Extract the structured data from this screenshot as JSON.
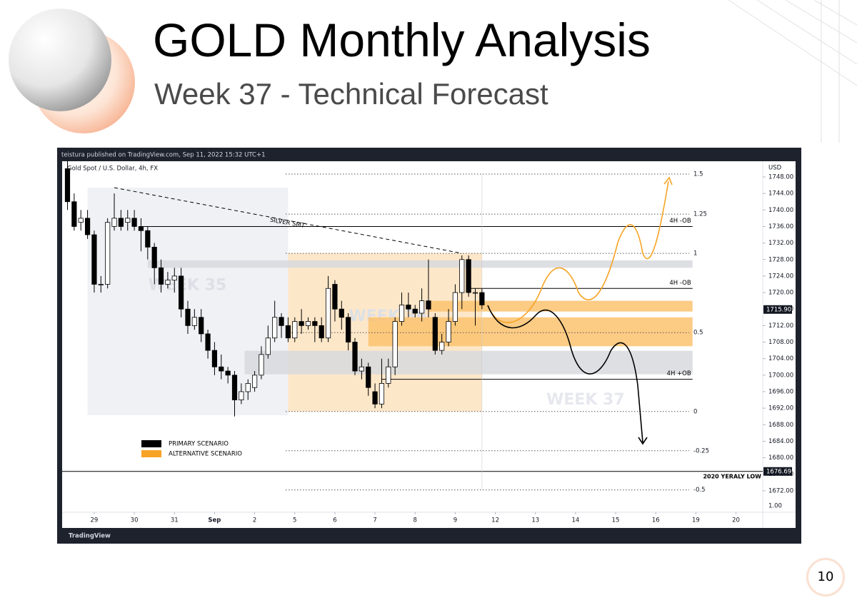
{
  "header": {
    "title": "GOLD Monthly Analysis",
    "subtitle": "Week 37 - Technical Forecast"
  },
  "page_number": "10",
  "chart_data": {
    "type": "candlestick",
    "publisher": "teistura published on TradingView.com, Sep 11, 2022 15:32 UTC+1",
    "symbol": "Gold Spot / U.S. Dollar, 4h, FX",
    "currency": "USD",
    "brand": "TradingView",
    "ohlc": [
      [
        1750,
        1752,
        1740,
        1742
      ],
      [
        1742,
        1744,
        1735,
        1736
      ],
      [
        1737,
        1740,
        1735,
        1738
      ],
      [
        1738,
        1740,
        1733,
        1734
      ],
      [
        1734,
        1735,
        1720,
        1722
      ],
      [
        1722,
        1724,
        1720,
        1722
      ],
      [
        1722,
        1738,
        1721,
        1737
      ],
      [
        1736,
        1744,
        1735,
        1738
      ],
      [
        1738,
        1740,
        1735,
        1736
      ],
      [
        1737,
        1740,
        1735,
        1738
      ],
      [
        1738,
        1740,
        1735,
        1736
      ],
      [
        1736,
        1738,
        1730,
        1735
      ],
      [
        1735,
        1736,
        1728,
        1731
      ],
      [
        1731,
        1732,
        1722,
        1726
      ],
      [
        1726,
        1728,
        1720,
        1722
      ],
      [
        1722,
        1725,
        1721,
        1723
      ],
      [
        1723,
        1726,
        1720,
        1724
      ],
      [
        1724,
        1726,
        1714,
        1716
      ],
      [
        1716,
        1718,
        1710,
        1712
      ],
      [
        1712,
        1716,
        1711,
        1714
      ],
      [
        1714,
        1716,
        1708,
        1710
      ],
      [
        1710,
        1711,
        1704,
        1706
      ],
      [
        1706,
        1708,
        1700,
        1702
      ],
      [
        1702,
        1705,
        1699,
        1701
      ],
      [
        1701,
        1702,
        1698,
        1700
      ],
      [
        1700,
        1701,
        1690,
        1694
      ],
      [
        1694,
        1698,
        1693,
        1696
      ],
      [
        1696,
        1699,
        1694,
        1698
      ],
      [
        1697,
        1701,
        1696,
        1700
      ],
      [
        1700,
        1707,
        1699,
        1705
      ],
      [
        1705,
        1712,
        1704,
        1709
      ],
      [
        1709,
        1718,
        1708,
        1714
      ],
      [
        1714,
        1715,
        1709,
        1712
      ],
      [
        1712,
        1714,
        1708,
        1709
      ],
      [
        1709,
        1714,
        1708,
        1713
      ],
      [
        1713,
        1716,
        1710,
        1712
      ],
      [
        1712,
        1714,
        1711,
        1713
      ],
      [
        1713,
        1714,
        1708,
        1712
      ],
      [
        1712,
        1714,
        1708,
        1709
      ],
      [
        1709,
        1724,
        1708,
        1721
      ],
      [
        1722,
        1723,
        1713,
        1716
      ],
      [
        1716,
        1718,
        1711,
        1714
      ],
      [
        1714,
        1715,
        1706,
        1708
      ],
      [
        1708,
        1709,
        1700,
        1701
      ],
      [
        1701,
        1704,
        1699,
        1702
      ],
      [
        1702,
        1703,
        1695,
        1697
      ],
      [
        1696,
        1698,
        1692,
        1693
      ],
      [
        1693,
        1704,
        1692,
        1698
      ],
      [
        1698,
        1704,
        1697,
        1702
      ],
      [
        1702,
        1714,
        1700,
        1713
      ],
      [
        1713,
        1720,
        1712,
        1717
      ],
      [
        1717,
        1720,
        1714,
        1716
      ],
      [
        1716,
        1717,
        1714,
        1715
      ],
      [
        1715,
        1721,
        1713,
        1718
      ],
      [
        1718,
        1728,
        1714,
        1716
      ],
      [
        1714,
        1715,
        1705,
        1706
      ],
      [
        1706,
        1710,
        1705,
        1708
      ],
      [
        1708,
        1716,
        1707,
        1713
      ],
      [
        1713,
        1722,
        1712,
        1720
      ],
      [
        1720,
        1729,
        1716,
        1728
      ],
      [
        1728,
        1729,
        1719,
        1720
      ],
      [
        1720,
        1721,
        1712,
        1720
      ],
      [
        1720,
        1721,
        1716,
        1717
      ]
    ],
    "xlim": [
      -0.8,
      104
    ],
    "xticks": [
      {
        "value": 4,
        "label": "29"
      },
      {
        "value": 10,
        "label": "30"
      },
      {
        "value": 16,
        "label": "31"
      },
      {
        "value": 22,
        "label": "Sep"
      },
      {
        "value": 28,
        "label": "2"
      },
      {
        "value": 34,
        "label": "5"
      },
      {
        "value": 40,
        "label": "6"
      },
      {
        "value": 46,
        "label": "7"
      },
      {
        "value": 52,
        "label": "8"
      },
      {
        "value": 58,
        "label": "9"
      },
      {
        "value": 64,
        "label": "12"
      },
      {
        "value": 70,
        "label": "13"
      },
      {
        "value": 76,
        "label": "14"
      },
      {
        "value": 82,
        "label": "15"
      },
      {
        "value": 88,
        "label": "16"
      },
      {
        "value": 94,
        "label": "19"
      },
      {
        "value": 100,
        "label": "20"
      }
    ],
    "ylim": [
      1666.8,
      1751.8
    ],
    "yticks": [
      {
        "value": 1672,
        "label": "1672.00"
      },
      {
        "value": 1676,
        "label": "1676.00"
      },
      {
        "value": 1680,
        "label": "1680.00"
      },
      {
        "value": 1684,
        "label": "1684.00"
      },
      {
        "value": 1688,
        "label": "1688.00"
      },
      {
        "value": 1692,
        "label": "1692.00"
      },
      {
        "value": 1696,
        "label": "1696.00"
      },
      {
        "value": 1700,
        "label": "1700.00"
      },
      {
        "value": 1704,
        "label": "1704.00"
      },
      {
        "value": 1708,
        "label": "1708.00"
      },
      {
        "value": 1712,
        "label": "1712.00"
      },
      {
        "value": 1716,
        "label": "1716.00"
      },
      {
        "value": 1720,
        "label": "1720.00"
      },
      {
        "value": 1724,
        "label": "1724.00"
      },
      {
        "value": 1728,
        "label": "1728.00"
      },
      {
        "value": 1732,
        "label": "1732.00"
      },
      {
        "value": 1736,
        "label": "1736.00"
      },
      {
        "value": 1740,
        "label": "1740.00"
      },
      {
        "value": 1744,
        "label": "1744.00"
      },
      {
        "value": 1748,
        "label": "1748.00"
      }
    ],
    "scale_label": "1.00",
    "last_price": {
      "value": 1715.9,
      "label": "1715.90"
    },
    "zones": [
      {
        "label": "WEEK 35",
        "x": [
          3,
          33
        ],
        "y": [
          1690.3,
          1745.4
        ],
        "color": "#eceef3"
      },
      {
        "label": "WEEK 36",
        "x": [
          33,
          62
        ],
        "y": [
          1691.2,
          1729.5
        ],
        "color": "#fde3bf"
      },
      {
        "x": [
          12,
          93.5
        ],
        "y": [
          1726,
          1727.8
        ],
        "color": "#d7d9de"
      },
      {
        "x": [
          54,
          93.5
        ],
        "y": [
          1715.4,
          1718
        ],
        "color": "#fbc26e"
      },
      {
        "x": [
          45,
          93.5
        ],
        "y": [
          1707,
          1714
        ],
        "color": "#fbc26e"
      },
      {
        "x": [
          26.5,
          93.5
        ],
        "y": [
          1700.2,
          1705.9
        ],
        "color": "#d7d9de"
      }
    ],
    "future_label": "WEEK 37",
    "fib_levels": [
      {
        "level": 1.5,
        "price": 1748.7
      },
      {
        "level": 1.25,
        "price": 1739
      },
      {
        "level": 1,
        "price": 1729.5
      },
      {
        "level": 0.5,
        "price": 1710.3
      },
      {
        "level": 0,
        "price": 1691.2
      },
      {
        "level": -0.25,
        "price": 1681.7
      },
      {
        "level": -0.5,
        "price": 1672.2
      }
    ],
    "levels": [
      {
        "label": "4H -OB",
        "price": 1736,
        "x": [
          11,
          93.5
        ]
      },
      {
        "label": "4H -OB",
        "price": 1721,
        "x": [
          60,
          93.5
        ]
      },
      {
        "label": "4H +OB",
        "price": 1699,
        "x": [
          47,
          93.5
        ]
      }
    ],
    "yearly_low": {
      "label": "2020 YERALY LOW",
      "value": 1676.69,
      "price_label": "1676.69"
    },
    "smt": {
      "label": "SILVER SMT",
      "from": [
        7,
        1745.4
      ],
      "to": [
        59,
        1729.5
      ]
    },
    "legend": [
      {
        "name": "PRIMARY SCENARIO",
        "color": "#000000"
      },
      {
        "name": "ALTERNATIVE SCENARIO",
        "color": "#f7a325"
      }
    ]
  }
}
